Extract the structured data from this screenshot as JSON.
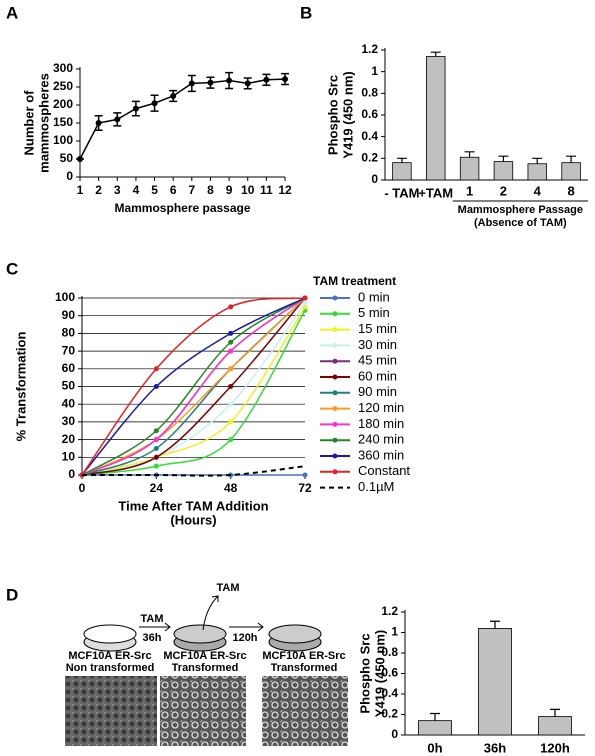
{
  "panels": [
    "A",
    "B",
    "C",
    "D"
  ],
  "chart_data": [
    {
      "type": "line",
      "ylabel": [
        "Number of",
        "mammospheres"
      ],
      "xlabel": "Mammosphere passage",
      "x": [
        1,
        2,
        3,
        4,
        5,
        6,
        7,
        8,
        9,
        10,
        11,
        12
      ],
      "series": [
        {
          "color": "#000000",
          "values": [
            50,
            150,
            160,
            190,
            205,
            225,
            260,
            262,
            268,
            260,
            270,
            272
          ],
          "errors": [
            0,
            20,
            18,
            20,
            22,
            15,
            22,
            15,
            22,
            15,
            15,
            15
          ]
        }
      ],
      "xlim": [
        1,
        12
      ],
      "ylim": [
        0,
        300
      ],
      "xticks": [
        1,
        2,
        3,
        4,
        5,
        6,
        7,
        8,
        9,
        10,
        11,
        12
      ],
      "yticks": [
        0,
        50,
        100,
        150,
        200,
        250,
        300
      ]
    },
    {
      "type": "bar",
      "ylabel": [
        "Phospho Src",
        "Y419 (450 nm)"
      ],
      "categories": [
        "- TAM",
        "+TAM",
        "1",
        "2",
        "4",
        "8"
      ],
      "group_label": [
        "Mammosphere Passage",
        "(Absence of TAM)"
      ],
      "values": [
        0.16,
        1.14,
        0.21,
        0.17,
        0.15,
        0.16
      ],
      "errors": [
        0.04,
        0.04,
        0.05,
        0.05,
        0.05,
        0.06
      ],
      "color": "#c0c0c0",
      "ylim": [
        0,
        1.2
      ],
      "yticks": [
        0,
        0.2,
        0.4,
        0.6,
        0.8,
        1,
        1.2
      ]
    },
    {
      "type": "line",
      "smooth": true,
      "grid": true,
      "ylabel": "% Transformation",
      "xlabel": [
        "Time After TAM Addition",
        "(Hours)"
      ],
      "legend_title": "TAM treatment",
      "x": [
        0,
        24,
        48,
        72
      ],
      "series": [
        {
          "name": "0 min",
          "color": "#4472c4",
          "values": [
            0,
            0,
            0,
            0
          ]
        },
        {
          "name": "5 min",
          "color": "#33dd33",
          "values": [
            0,
            5,
            20,
            93
          ]
        },
        {
          "name": "15 min",
          "color": "#f0f020",
          "values": [
            0,
            10,
            30,
            95
          ]
        },
        {
          "name": "30 min",
          "color": "#c8f0f0",
          "values": [
            0,
            10,
            40,
            97
          ]
        },
        {
          "name": "45 min",
          "color": "#7a2a7a",
          "values": [
            0,
            20,
            70,
            100
          ]
        },
        {
          "name": "60 min",
          "color": "#800000",
          "values": [
            0,
            10,
            50,
            100
          ]
        },
        {
          "name": "90 min",
          "color": "#208080",
          "values": [
            0,
            15,
            60,
            100
          ]
        },
        {
          "name": "120 min",
          "color": "#ff9922",
          "values": [
            0,
            20,
            60,
            100
          ]
        },
        {
          "name": "180 min",
          "color": "#ff33cc",
          "values": [
            0,
            20,
            70,
            100
          ]
        },
        {
          "name": "240 min",
          "color": "#228822",
          "values": [
            0,
            25,
            75,
            100
          ]
        },
        {
          "name": "360 min",
          "color": "#1a1aaa",
          "values": [
            0,
            50,
            80,
            100
          ]
        },
        {
          "name": "Constant",
          "color": "#e82020",
          "values": [
            0,
            60,
            95,
            100
          ]
        },
        {
          "name": "0.1µM",
          "color": "#000000",
          "dash": true,
          "values": [
            0,
            0,
            0,
            5
          ]
        }
      ],
      "xlim": [
        0,
        72
      ],
      "ylim": [
        0,
        100
      ],
      "xticks": [
        0,
        24,
        48,
        72
      ],
      "yticks": [
        0,
        10,
        20,
        30,
        40,
        50,
        60,
        70,
        80,
        90,
        100
      ]
    },
    {
      "type": "bar",
      "ylabel": [
        "Phospho Src",
        "Y419 (450 nm)"
      ],
      "categories": [
        "0h",
        "36h",
        "120h"
      ],
      "values": [
        0.14,
        1.04,
        0.18
      ],
      "errors": [
        0.07,
        0.07,
        0.07
      ],
      "color": "#c0c0c0",
      "ylim": [
        0,
        1.2
      ],
      "yticks": [
        0,
        0.2,
        0.4,
        0.6,
        0.8,
        1,
        1.2
      ]
    }
  ],
  "diagram": {
    "steps": [
      {
        "label": "TAM",
        "time": "36h"
      },
      {
        "time": "120h"
      }
    ],
    "removed": "TAM",
    "cells": [
      [
        "MCF10A ER-Src",
        "Non transformed"
      ],
      [
        "MCF10A ER-Src",
        "Transformed"
      ],
      [
        "MCF10A ER-Src",
        "Transformed"
      ]
    ]
  }
}
